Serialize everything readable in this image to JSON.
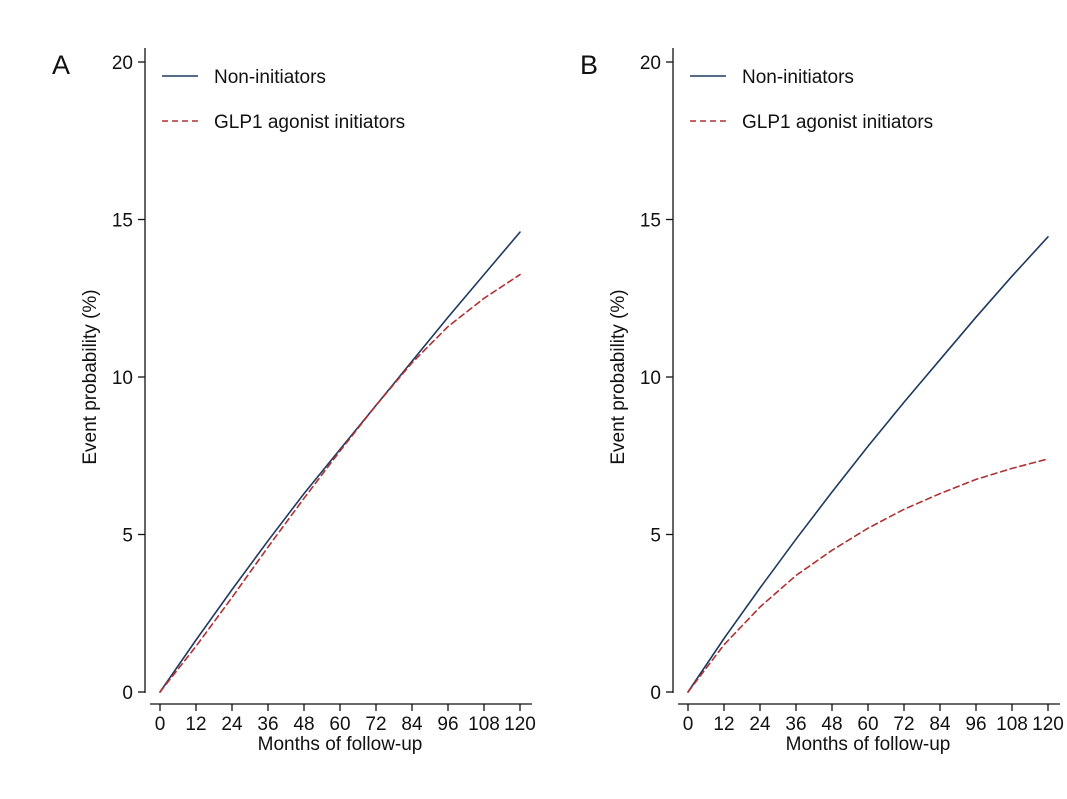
{
  "chart_data": [
    {
      "panel_label": "A",
      "type": "line",
      "xlabel": "Months of follow-up",
      "ylabel": "Event probability (%)",
      "xlim": [
        0,
        120
      ],
      "ylim": [
        0,
        20
      ],
      "xticks": [
        0,
        12,
        24,
        36,
        48,
        60,
        72,
        84,
        96,
        108,
        120
      ],
      "yticks": [
        0,
        5,
        10,
        15,
        20
      ],
      "grid": false,
      "legend_position": "top-left",
      "series": [
        {
          "name": "Non-initiators",
          "color": "#1f3a5f",
          "style": "solid",
          "x": [
            0,
            12,
            24,
            36,
            48,
            60,
            72,
            84,
            96,
            108,
            120
          ],
          "y": [
            0,
            1.65,
            3.25,
            4.8,
            6.3,
            7.7,
            9.1,
            10.5,
            11.9,
            13.25,
            14.6
          ]
        },
        {
          "name": "GLP1 agonist initiators",
          "color": "#b03030",
          "style": "dashed",
          "x": [
            0,
            12,
            24,
            36,
            48,
            60,
            72,
            84,
            96,
            108,
            120
          ],
          "y": [
            0,
            1.45,
            3.0,
            4.6,
            6.15,
            7.65,
            9.1,
            10.45,
            11.6,
            12.5,
            13.25
          ]
        }
      ]
    },
    {
      "panel_label": "B",
      "type": "line",
      "xlabel": "Months of follow-up",
      "ylabel": "Event probability (%)",
      "xlim": [
        0,
        120
      ],
      "ylim": [
        0,
        20
      ],
      "xticks": [
        0,
        12,
        24,
        36,
        48,
        60,
        72,
        84,
        96,
        108,
        120
      ],
      "yticks": [
        0,
        5,
        10,
        15,
        20
      ],
      "grid": false,
      "legend_position": "top-left",
      "series": [
        {
          "name": "Non-initiators",
          "color": "#1f3a5f",
          "style": "solid",
          "x": [
            0,
            12,
            24,
            36,
            48,
            60,
            72,
            84,
            96,
            108,
            120
          ],
          "y": [
            0,
            1.7,
            3.3,
            4.85,
            6.35,
            7.8,
            9.2,
            10.55,
            11.9,
            13.2,
            14.45
          ]
        },
        {
          "name": "GLP1 agonist initiators",
          "color": "#b03030",
          "style": "dashed",
          "x": [
            0,
            12,
            24,
            36,
            48,
            60,
            72,
            84,
            96,
            108,
            120
          ],
          "y": [
            0,
            1.5,
            2.7,
            3.7,
            4.5,
            5.2,
            5.8,
            6.3,
            6.75,
            7.1,
            7.4
          ]
        }
      ]
    }
  ]
}
